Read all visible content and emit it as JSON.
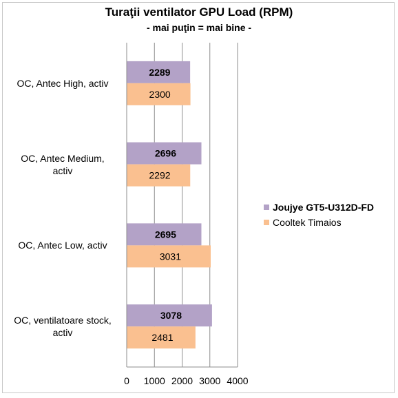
{
  "chart_data": {
    "type": "bar",
    "orientation": "horizontal",
    "title": "Turaţii ventilator GPU Load (RPM)",
    "subtitle": "- mai puţin = mai bine -",
    "categories": [
      "OC, Antec High, activ",
      "OC, Antec Medium, activ",
      "OC, Antec Low, activ",
      "OC, ventilatoare stock, activ"
    ],
    "category_lines": [
      [
        "OC, Antec High, activ"
      ],
      [
        "OC, Antec Medium,",
        "activ"
      ],
      [
        "OC, Antec Low, activ"
      ],
      [
        "OC, ventilatoare stock,",
        "activ"
      ]
    ],
    "series": [
      {
        "name": "Joujye GT5-U312D-FD",
        "values": [
          2289,
          2696,
          2695,
          3078
        ],
        "color": "#b3a2c7",
        "label_bold": true
      },
      {
        "name": "Cooltek Timaios",
        "values": [
          2300,
          2292,
          3031,
          2481
        ],
        "color": "#fac090",
        "label_bold": false
      }
    ],
    "xlim": [
      0,
      4000
    ],
    "xticks": [
      0,
      1000,
      2000,
      3000,
      4000
    ],
    "grid": true,
    "legend_position": "right"
  }
}
